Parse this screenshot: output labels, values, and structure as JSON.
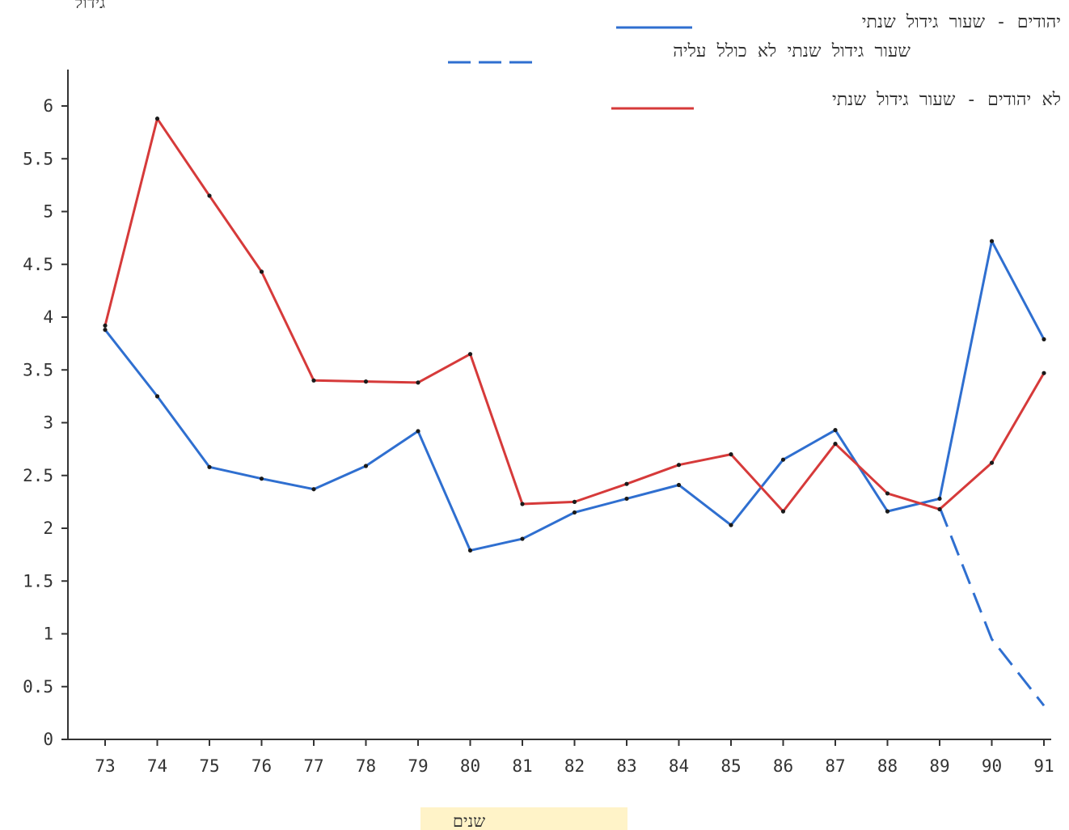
{
  "chart_data": {
    "type": "line",
    "ylabel": "גידול",
    "xlabel": "שנים",
    "x": [
      "73",
      "74",
      "75",
      "76",
      "77",
      "78",
      "79",
      "80",
      "81",
      "82",
      "83",
      "84",
      "85",
      "86",
      "87",
      "88",
      "89",
      "90",
      "91"
    ],
    "ylim": [
      0,
      6.4
    ],
    "yticks": [
      0,
      0.5,
      1,
      1.5,
      2,
      2.5,
      3,
      3.5,
      4,
      4.5,
      5,
      5.5,
      6
    ],
    "ytick_labels": [
      "0",
      "0.5",
      "1",
      "1.5",
      "2",
      "2.5",
      "3",
      "3.5",
      "4",
      "4.5",
      "5",
      "5.5",
      "6"
    ],
    "legend_position": "top-right",
    "series": [
      {
        "name": "יהודים - שעור גידול שנתי",
        "color": "#2f6fd0",
        "style": "solid",
        "x": [
          "73",
          "74",
          "75",
          "76",
          "77",
          "78",
          "79",
          "80",
          "81",
          "82",
          "83",
          "84",
          "85",
          "86",
          "87",
          "88",
          "89",
          "90",
          "91"
        ],
        "values": [
          3.88,
          3.25,
          2.58,
          2.47,
          2.37,
          2.59,
          2.92,
          1.79,
          1.9,
          2.15,
          2.28,
          2.41,
          2.03,
          2.65,
          2.93,
          2.16,
          2.28,
          4.72,
          3.79
        ]
      },
      {
        "name": "שעור גידול שנתי לא כולל עליה",
        "color": "#2f6fd0",
        "style": "dashed",
        "x": [
          "89",
          "90",
          "91"
        ],
        "values": [
          2.2,
          0.95,
          0.32
        ]
      },
      {
        "name": "לא יהודים - שעור גידול שנתי",
        "color": "#d63a3a",
        "style": "solid",
        "x": [
          "73",
          "74",
          "75",
          "76",
          "77",
          "78",
          "79",
          "80",
          "81",
          "82",
          "83",
          "84",
          "85",
          "86",
          "87",
          "88",
          "89",
          "90",
          "91"
        ],
        "values": [
          3.92,
          5.88,
          5.15,
          4.43,
          3.4,
          3.39,
          3.38,
          3.65,
          2.23,
          2.25,
          2.42,
          2.6,
          2.7,
          2.16,
          2.8,
          2.33,
          2.18,
          2.62,
          3.47
        ]
      }
    ]
  }
}
